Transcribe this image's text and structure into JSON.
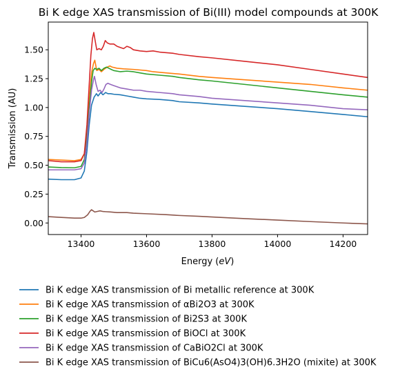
{
  "chart_data": {
    "type": "line",
    "title": "Bi K edge XAS transmission of Bi(III) model compounds at 300K",
    "xlabel_prefix": "Energy (",
    "xlabel_unit": "eV",
    "xlabel_suffix": ")",
    "ylabel": "Transmission (AU)",
    "xlim": [
      13300,
      14275
    ],
    "ylim": [
      -0.1,
      1.74
    ],
    "x_ticks": [
      13400,
      13600,
      13800,
      14000,
      14200
    ],
    "y_ticks": [
      0.0,
      0.25,
      0.5,
      0.75,
      1.0,
      1.25,
      1.5
    ],
    "grid": false,
    "legend_position": "below",
    "series": [
      {
        "name": "Bi K edge XAS transmission of Bi metallic reference at 300K",
        "color": "#1f77b4",
        "points": [
          [
            13300,
            0.38
          ],
          [
            13340,
            0.375
          ],
          [
            13380,
            0.375
          ],
          [
            13400,
            0.39
          ],
          [
            13410,
            0.45
          ],
          [
            13418,
            0.62
          ],
          [
            13425,
            0.85
          ],
          [
            13432,
            1.02
          ],
          [
            13440,
            1.09
          ],
          [
            13447,
            1.12
          ],
          [
            13452,
            1.1
          ],
          [
            13460,
            1.13
          ],
          [
            13467,
            1.11
          ],
          [
            13475,
            1.13
          ],
          [
            13482,
            1.12
          ],
          [
            13490,
            1.12
          ],
          [
            13500,
            1.115
          ],
          [
            13520,
            1.11
          ],
          [
            13540,
            1.1
          ],
          [
            13560,
            1.09
          ],
          [
            13580,
            1.08
          ],
          [
            13600,
            1.075
          ],
          [
            13640,
            1.07
          ],
          [
            13680,
            1.06
          ],
          [
            13700,
            1.05
          ],
          [
            13760,
            1.04
          ],
          [
            13800,
            1.03
          ],
          [
            13900,
            1.01
          ],
          [
            14000,
            0.99
          ],
          [
            14100,
            0.965
          ],
          [
            14200,
            0.94
          ],
          [
            14275,
            0.92
          ]
        ]
      },
      {
        "name": "Bi K edge XAS transmission of αBi2O3 at 300K",
        "color": "#ff7f0e",
        "points": [
          [
            13300,
            0.55
          ],
          [
            13340,
            0.545
          ],
          [
            13380,
            0.54
          ],
          [
            13400,
            0.55
          ],
          [
            13410,
            0.6
          ],
          [
            13418,
            0.78
          ],
          [
            13425,
            1.05
          ],
          [
            13432,
            1.3
          ],
          [
            13438,
            1.38
          ],
          [
            13442,
            1.41
          ],
          [
            13448,
            1.32
          ],
          [
            13455,
            1.33
          ],
          [
            13462,
            1.31
          ],
          [
            13470,
            1.33
          ],
          [
            13480,
            1.35
          ],
          [
            13488,
            1.36
          ],
          [
            13495,
            1.35
          ],
          [
            13510,
            1.34
          ],
          [
            13530,
            1.335
          ],
          [
            13560,
            1.33
          ],
          [
            13600,
            1.32
          ],
          [
            13620,
            1.31
          ],
          [
            13660,
            1.3
          ],
          [
            13700,
            1.29
          ],
          [
            13760,
            1.27
          ],
          [
            13800,
            1.26
          ],
          [
            13900,
            1.24
          ],
          [
            14000,
            1.22
          ],
          [
            14100,
            1.2
          ],
          [
            14200,
            1.17
          ],
          [
            14275,
            1.15
          ]
        ]
      },
      {
        "name": "Bi K edge XAS transmission of Bi2S3 at 300K",
        "color": "#2ca02c",
        "points": [
          [
            13300,
            0.485
          ],
          [
            13340,
            0.48
          ],
          [
            13380,
            0.478
          ],
          [
            13400,
            0.49
          ],
          [
            13410,
            0.55
          ],
          [
            13418,
            0.75
          ],
          [
            13425,
            1.0
          ],
          [
            13432,
            1.22
          ],
          [
            13437,
            1.32
          ],
          [
            13442,
            1.34
          ],
          [
            13448,
            1.33
          ],
          [
            13455,
            1.34
          ],
          [
            13462,
            1.32
          ],
          [
            13470,
            1.34
          ],
          [
            13478,
            1.35
          ],
          [
            13485,
            1.34
          ],
          [
            13492,
            1.33
          ],
          [
            13500,
            1.32
          ],
          [
            13520,
            1.31
          ],
          [
            13540,
            1.315
          ],
          [
            13560,
            1.31
          ],
          [
            13580,
            1.3
          ],
          [
            13600,
            1.29
          ],
          [
            13640,
            1.28
          ],
          [
            13680,
            1.27
          ],
          [
            13700,
            1.26
          ],
          [
            13760,
            1.24
          ],
          [
            13800,
            1.23
          ],
          [
            13900,
            1.2
          ],
          [
            14000,
            1.17
          ],
          [
            14100,
            1.14
          ],
          [
            14200,
            1.11
          ],
          [
            14275,
            1.09
          ]
        ]
      },
      {
        "name": "Bi K edge XAS transmission of BiOCl at 300K",
        "color": "#d62728",
        "points": [
          [
            13300,
            0.54
          ],
          [
            13340,
            0.53
          ],
          [
            13380,
            0.53
          ],
          [
            13400,
            0.54
          ],
          [
            13410,
            0.6
          ],
          [
            13418,
            0.85
          ],
          [
            13425,
            1.2
          ],
          [
            13430,
            1.45
          ],
          [
            13435,
            1.6
          ],
          [
            13439,
            1.65
          ],
          [
            13443,
            1.58
          ],
          [
            13448,
            1.5
          ],
          [
            13455,
            1.51
          ],
          [
            13462,
            1.5
          ],
          [
            13468,
            1.53
          ],
          [
            13474,
            1.58
          ],
          [
            13480,
            1.56
          ],
          [
            13488,
            1.55
          ],
          [
            13500,
            1.55
          ],
          [
            13510,
            1.53
          ],
          [
            13520,
            1.52
          ],
          [
            13530,
            1.51
          ],
          [
            13540,
            1.53
          ],
          [
            13550,
            1.52
          ],
          [
            13560,
            1.5
          ],
          [
            13580,
            1.49
          ],
          [
            13600,
            1.485
          ],
          [
            13620,
            1.49
          ],
          [
            13640,
            1.48
          ],
          [
            13680,
            1.47
          ],
          [
            13700,
            1.46
          ],
          [
            13760,
            1.44
          ],
          [
            13800,
            1.43
          ],
          [
            13900,
            1.4
          ],
          [
            14000,
            1.37
          ],
          [
            14100,
            1.33
          ],
          [
            14200,
            1.29
          ],
          [
            14275,
            1.26
          ]
        ]
      },
      {
        "name": "Bi K edge XAS transmission of CaBiO2Cl at 300K",
        "color": "#9467bd",
        "points": [
          [
            13300,
            0.46
          ],
          [
            13340,
            0.46
          ],
          [
            13380,
            0.46
          ],
          [
            13400,
            0.47
          ],
          [
            13410,
            0.52
          ],
          [
            13418,
            0.7
          ],
          [
            13425,
            0.95
          ],
          [
            13432,
            1.15
          ],
          [
            13438,
            1.24
          ],
          [
            13441,
            1.27
          ],
          [
            13446,
            1.2
          ],
          [
            13452,
            1.14
          ],
          [
            13458,
            1.15
          ],
          [
            13464,
            1.13
          ],
          [
            13470,
            1.16
          ],
          [
            13476,
            1.2
          ],
          [
            13482,
            1.21
          ],
          [
            13490,
            1.2
          ],
          [
            13500,
            1.19
          ],
          [
            13520,
            1.17
          ],
          [
            13540,
            1.16
          ],
          [
            13560,
            1.15
          ],
          [
            13580,
            1.15
          ],
          [
            13600,
            1.14
          ],
          [
            13640,
            1.13
          ],
          [
            13680,
            1.12
          ],
          [
            13700,
            1.11
          ],
          [
            13760,
            1.095
          ],
          [
            13800,
            1.08
          ],
          [
            13900,
            1.06
          ],
          [
            14000,
            1.04
          ],
          [
            14100,
            1.02
          ],
          [
            14200,
            0.99
          ],
          [
            14275,
            0.98
          ]
        ]
      },
      {
        "name": "Bi K edge XAS transmission of BiCu6(AsO4)3(OH)6.3H2O (mixite) at 300K",
        "color": "#8c564b",
        "points": [
          [
            13300,
            0.055
          ],
          [
            13340,
            0.048
          ],
          [
            13380,
            0.042
          ],
          [
            13400,
            0.042
          ],
          [
            13410,
            0.048
          ],
          [
            13420,
            0.07
          ],
          [
            13427,
            0.1
          ],
          [
            13432,
            0.115
          ],
          [
            13437,
            0.105
          ],
          [
            13442,
            0.095
          ],
          [
            13450,
            0.1
          ],
          [
            13458,
            0.105
          ],
          [
            13466,
            0.1
          ],
          [
            13475,
            0.098
          ],
          [
            13490,
            0.095
          ],
          [
            13510,
            0.09
          ],
          [
            13540,
            0.09
          ],
          [
            13560,
            0.085
          ],
          [
            13600,
            0.08
          ],
          [
            13660,
            0.072
          ],
          [
            13700,
            0.065
          ],
          [
            13760,
            0.058
          ],
          [
            13800,
            0.052
          ],
          [
            13900,
            0.038
          ],
          [
            14000,
            0.025
          ],
          [
            14100,
            0.012
          ],
          [
            14200,
            0.0
          ],
          [
            14275,
            -0.008
          ]
        ]
      }
    ]
  }
}
